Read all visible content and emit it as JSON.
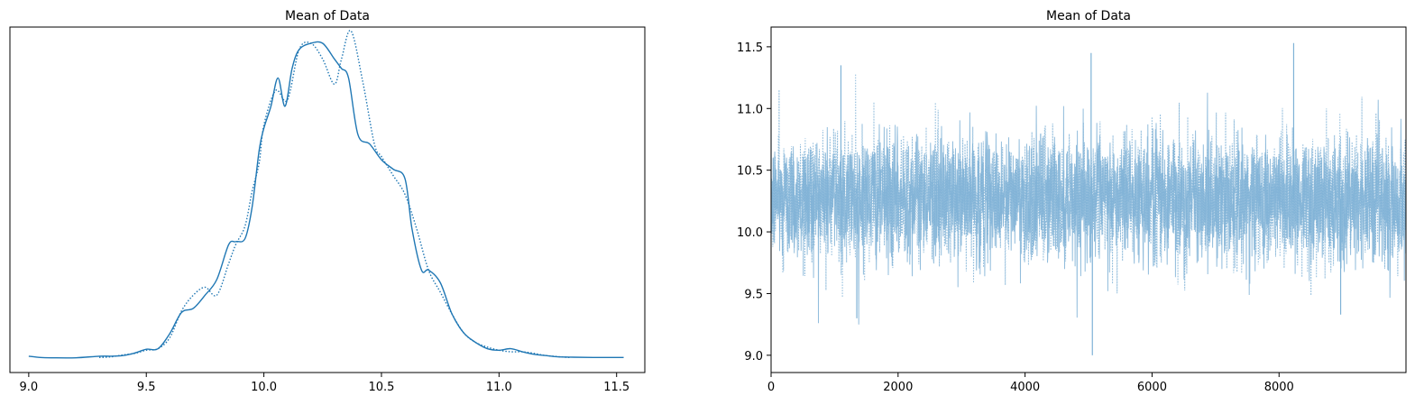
{
  "colors": {
    "line": "#1f77b4",
    "trace": "#7fb2d6",
    "axis": "#000000"
  },
  "chart_data": [
    {
      "type": "line",
      "title": "Mean of Data",
      "xlabel": "",
      "ylabel": "",
      "xlim": [
        8.92,
        11.62
      ],
      "ylim": [
        0,
        1.0
      ],
      "x_ticks": [
        "9.0",
        "9.5",
        "10.0",
        "10.5",
        "11.0",
        "11.5"
      ],
      "y_ticks": [],
      "grid": false,
      "legend": "none",
      "series": [
        {
          "line_style": "solid",
          "x": [
            9.0,
            9.05,
            9.1,
            9.2,
            9.3,
            9.35,
            9.4,
            9.45,
            9.5,
            9.55,
            9.6,
            9.65,
            9.7,
            9.75,
            9.8,
            9.85,
            9.88,
            9.92,
            9.95,
            9.98,
            10.0,
            10.03,
            10.06,
            10.09,
            10.12,
            10.15,
            10.2,
            10.25,
            10.3,
            10.33,
            10.36,
            10.4,
            10.45,
            10.5,
            10.55,
            10.6,
            10.63,
            10.67,
            10.7,
            10.75,
            10.8,
            10.85,
            10.9,
            10.95,
            11.0,
            11.05,
            11.1,
            11.15,
            11.2,
            11.25,
            11.3,
            11.4,
            11.53
          ],
          "y": [
            0.006,
            0.002,
            0.001,
            0.001,
            0.006,
            0.006,
            0.008,
            0.016,
            0.028,
            0.03,
            0.078,
            0.145,
            0.158,
            0.2,
            0.25,
            0.36,
            0.37,
            0.38,
            0.48,
            0.66,
            0.73,
            0.8,
            0.89,
            0.8,
            0.92,
            0.98,
            1.0,
            1.0,
            0.95,
            0.92,
            0.89,
            0.71,
            0.68,
            0.63,
            0.6,
            0.57,
            0.41,
            0.28,
            0.28,
            0.24,
            0.14,
            0.08,
            0.05,
            0.03,
            0.025,
            0.03,
            0.02,
            0.012,
            0.008,
            0.004,
            0.003,
            0.002,
            0.002
          ]
        },
        {
          "line_style": "dotted",
          "x": [
            9.3,
            9.35,
            9.4,
            9.45,
            9.5,
            9.55,
            9.6,
            9.65,
            9.7,
            9.75,
            9.8,
            9.85,
            9.88,
            9.92,
            9.95,
            9.98,
            10.0,
            10.05,
            10.1,
            10.15,
            10.2,
            10.25,
            10.3,
            10.33,
            10.37,
            10.42,
            10.47,
            10.5,
            10.55,
            10.6,
            10.65,
            10.7,
            10.75,
            10.8,
            10.85,
            10.9,
            10.95,
            11.0,
            11.05,
            11.1,
            11.15,
            11.2,
            11.3
          ],
          "y": [
            0.002,
            0.004,
            0.01,
            0.015,
            0.025,
            0.03,
            0.065,
            0.15,
            0.2,
            0.225,
            0.2,
            0.3,
            0.36,
            0.42,
            0.53,
            0.62,
            0.74,
            0.85,
            0.82,
            0.98,
            1.0,
            0.95,
            0.87,
            0.95,
            1.04,
            0.88,
            0.68,
            0.64,
            0.58,
            0.52,
            0.41,
            0.28,
            0.21,
            0.14,
            0.08,
            0.05,
            0.035,
            0.025,
            0.02,
            0.02,
            0.015,
            0.008,
            0.002
          ]
        }
      ]
    },
    {
      "type": "line",
      "title": "Mean of Data",
      "xlabel": "",
      "ylabel": "",
      "xlim": [
        0,
        9999
      ],
      "ylim": [
        8.86,
        11.66
      ],
      "x_ticks": [
        "0",
        "2000",
        "4000",
        "6000",
        "8000"
      ],
      "y_ticks": [
        "9.0",
        "9.5",
        "10.0",
        "10.5",
        "11.0",
        "11.5"
      ],
      "grid": false,
      "legend": "none",
      "series_summary": {
        "n_draws": 10000,
        "center": 10.27,
        "spread_sd": 0.25,
        "chains": [
          "solid",
          "dotted"
        ],
        "notable_extremes": [
          {
            "x": 5060,
            "y": 9.0
          },
          {
            "x": 5040,
            "y": 11.45
          },
          {
            "x": 8230,
            "y": 11.53
          },
          {
            "x": 1100,
            "y": 11.35
          },
          {
            "x": 1350,
            "y": 9.3
          },
          {
            "x": 8970,
            "y": 9.33
          }
        ]
      }
    }
  ]
}
